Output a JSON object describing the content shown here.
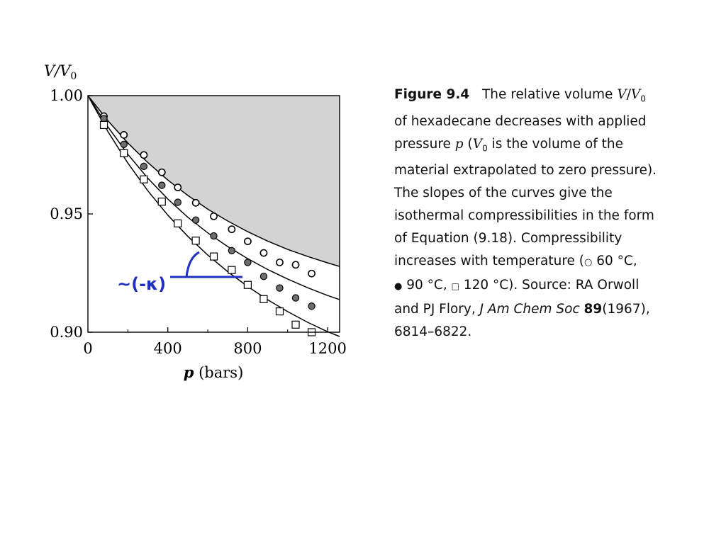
{
  "chart_data": {
    "type": "scatter",
    "ylabel": "V/V0",
    "xlabel": "p (bars)",
    "xlim": [
      0,
      1260
    ],
    "ylim": [
      0.9,
      1.0
    ],
    "x_ticks": [
      "0",
      "400",
      "800",
      "1200"
    ],
    "y_ticks": [
      "1.00",
      "0.95",
      "0.90"
    ],
    "series": [
      {
        "name": "60 °C",
        "marker": "open-circle",
        "x": [
          80,
          180,
          280,
          370,
          450,
          540,
          630,
          720,
          800,
          880,
          960,
          1040,
          1120
        ],
        "y": [
          0.9913,
          0.9834,
          0.9749,
          0.9676,
          0.9612,
          0.9547,
          0.949,
          0.9435,
          0.9384,
          0.9335,
          0.9295,
          0.9285,
          0.9248
        ],
        "curve": {
          "x": [
            0,
            100,
            200,
            300,
            400,
            500,
            600,
            700,
            800,
            900,
            1000,
            1100,
            1200,
            1260
          ],
          "y": [
            1.0,
            0.9894,
            0.98,
            0.9717,
            0.9643,
            0.9578,
            0.952,
            0.947,
            0.9425,
            0.9385,
            0.935,
            0.932,
            0.9293,
            0.9278
          ]
        }
      },
      {
        "name": "90 °C",
        "marker": "filled-circle",
        "x": [
          80,
          180,
          280,
          370,
          450,
          540,
          630,
          720,
          800,
          880,
          960,
          1040,
          1120
        ],
        "y": [
          0.9903,
          0.9794,
          0.9701,
          0.9621,
          0.9549,
          0.9474,
          0.9407,
          0.9345,
          0.9295,
          0.9236,
          0.9187,
          0.9145,
          0.911
        ],
        "curve": {
          "x": [
            0,
            100,
            200,
            300,
            400,
            500,
            600,
            700,
            800,
            900,
            1000,
            1100,
            1200,
            1260
          ],
          "y": [
            1.0,
            0.9868,
            0.9752,
            0.9651,
            0.9563,
            0.9486,
            0.942,
            0.9362,
            0.9311,
            0.9265,
            0.9225,
            0.9188,
            0.9155,
            0.9138
          ]
        }
      },
      {
        "name": "120 °C",
        "marker": "open-square",
        "x": [
          80,
          180,
          280,
          370,
          450,
          540,
          630,
          720,
          800,
          880,
          960,
          1040,
          1120
        ],
        "y": [
          0.9876,
          0.9757,
          0.9646,
          0.9552,
          0.946,
          0.9387,
          0.932,
          0.9263,
          0.92,
          0.914,
          0.9088,
          0.9032,
          0.9
        ],
        "curve": {
          "x": [
            0,
            100,
            200,
            300,
            400,
            500,
            600,
            700,
            800,
            900,
            1000,
            1100,
            1200,
            1260
          ],
          "y": [
            1.0,
            0.9848,
            0.9715,
            0.9598,
            0.9495,
            0.9405,
            0.9326,
            0.9256,
            0.9193,
            0.9137,
            0.9087,
            0.9042,
            0.9002,
            0.8982
          ]
        }
      }
    ],
    "annotation": {
      "label": "~(-κ)",
      "color": "#2030c0"
    },
    "shaded_region": {
      "color": "#d3d3d3",
      "description": "above 60 °C curve"
    }
  },
  "caption": {
    "figure_label": "Figure 9.4",
    "lines": [
      "The relative volume V/V0",
      "of hexadecane decreases with applied",
      "pressure p (V0 is the volume of the",
      "material extrapolated to zero pressure).",
      "The slopes of the curves give the",
      "isothermal compressibilities in the form",
      "of Equation (9.18). Compressibility",
      "increases with temperature (○ 60 °C,",
      "● 90 °C, □ 120 °C). Source: RA Orwoll",
      "and PJ Flory, J Am Chem Soc 89(1967),",
      "6814–6822."
    ]
  }
}
